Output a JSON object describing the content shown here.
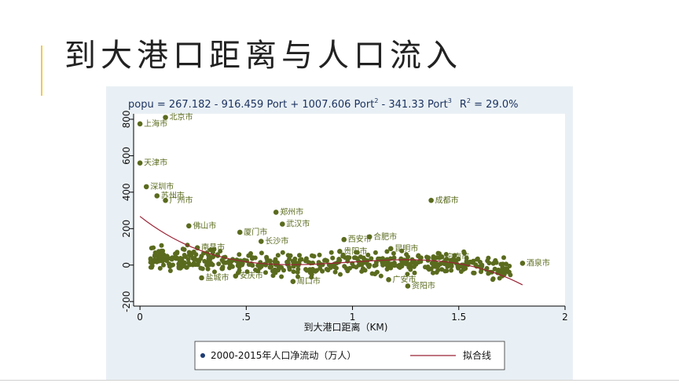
{
  "slide": {
    "title": "到大港口距离与人口流入"
  },
  "colors": {
    "accent": "#f2c94c",
    "panel": "#e9f0f5",
    "point": "#5a6b1e",
    "fit": "#9b2335",
    "legend_dot": "#1f3d73"
  },
  "chart_data": {
    "type": "scatter",
    "title": "popu = 267.182 - 916.459 Port + 1007.606 Port ² - 341.33 Port ³  R² = 29.0%",
    "title_parts": {
      "a": "popu = 267.182 - 916.459 Port + 1007.606 Port",
      "sup1": "2",
      "b": " - 341.33 Port",
      "sup2": "3",
      "c": "R",
      "sup3": "2",
      "d": " = 29.0%"
    },
    "xlabel": "到大港口距离（KM)",
    "ylabel": "",
    "xlim": [
      -0.03,
      2.0
    ],
    "ylim": [
      -225,
      830
    ],
    "xticks": [
      0,
      0.5,
      1,
      1.5,
      2
    ],
    "xtick_labels": [
      "0",
      ".5",
      "1",
      "1.5",
      "2"
    ],
    "yticks": [
      -200,
      0,
      200,
      400,
      600,
      800
    ],
    "ytick_labels": [
      "-200",
      "0",
      "200",
      "400",
      "600",
      "800"
    ],
    "grid": false,
    "legend": {
      "position": "bottom",
      "entries": [
        "2000-2015年人口净流动（万人）",
        "拟合线"
      ]
    },
    "fit": {
      "coefficients": [
        267.182,
        -916.459,
        1007.606,
        -341.33
      ],
      "x_range": [
        0,
        1.8
      ],
      "r2": "29.0%"
    },
    "labeled_points": [
      {
        "name": "北京市",
        "x": 0.12,
        "y": 810
      },
      {
        "name": "上海市",
        "x": 0.0,
        "y": 775
      },
      {
        "name": "天津市",
        "x": 0.0,
        "y": 560
      },
      {
        "name": "深圳市",
        "x": 0.03,
        "y": 430
      },
      {
        "name": "苏州市",
        "x": 0.08,
        "y": 380
      },
      {
        "name": "广州市",
        "x": 0.12,
        "y": 355
      },
      {
        "name": "成都市",
        "x": 1.37,
        "y": 355
      },
      {
        "name": "郑州市",
        "x": 0.64,
        "y": 290
      },
      {
        "name": "武汉市",
        "x": 0.67,
        "y": 225
      },
      {
        "name": "佛山市",
        "x": 0.23,
        "y": 215
      },
      {
        "name": "厦门市",
        "x": 0.47,
        "y": 180
      },
      {
        "name": "长沙市",
        "x": 0.57,
        "y": 130
      },
      {
        "name": "西安市",
        "x": 0.96,
        "y": 140
      },
      {
        "name": "合肥市",
        "x": 1.08,
        "y": 155
      },
      {
        "name": "昆明市",
        "x": 1.18,
        "y": 90
      },
      {
        "name": "宁南市",
        "x": 1.42,
        "y": 45
      },
      {
        "name": "酒泉市",
        "x": 1.8,
        "y": 10
      },
      {
        "name": "盐城市",
        "x": 0.29,
        "y": -70
      },
      {
        "name": "安庆市",
        "x": 0.45,
        "y": -60
      },
      {
        "name": "周口市",
        "x": 0.72,
        "y": -90
      },
      {
        "name": "广安市",
        "x": 1.17,
        "y": -80
      },
      {
        "name": "资阳市",
        "x": 1.26,
        "y": -115
      },
      {
        "name": "贵阳市",
        "x": 0.94,
        "y": 75
      },
      {
        "name": "南昌市",
        "x": 0.27,
        "y": 95
      }
    ],
    "cluster_points_note": ""
  }
}
